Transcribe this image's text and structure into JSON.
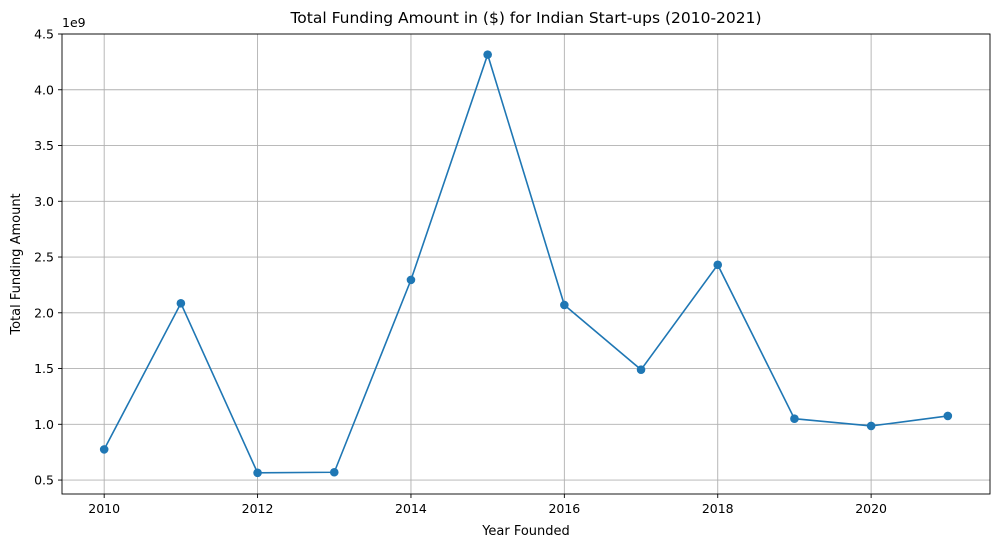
{
  "chart_data": {
    "type": "line",
    "title": "Total Funding Amount in ($) for Indian Start-ups (2010-2021)",
    "xlabel": "Year Founded",
    "ylabel": "Total Funding Amount",
    "y_offset_label": "1e9",
    "x": [
      2010,
      2011,
      2012,
      2013,
      2014,
      2015,
      2016,
      2017,
      2018,
      2019,
      2020,
      2021
    ],
    "series": [
      {
        "values": [
          775000000,
          2085000000,
          565000000,
          570000000,
          2295000000,
          4315000000,
          2070000000,
          1490000000,
          2430000000,
          1050000000,
          985000000,
          1075000000
        ],
        "color": "#1f77b4",
        "marker": "circle"
      }
    ],
    "xlim": [
      2009.45,
      2021.55
    ],
    "ylim": [
      0.375,
      4.5
    ],
    "x_ticks": [
      2010,
      2012,
      2014,
      2016,
      2018,
      2020
    ],
    "y_ticks": [
      0.5,
      1.0,
      1.5,
      2.0,
      2.5,
      3.0,
      3.5,
      4.0,
      4.5
    ],
    "y_tick_labels": [
      "0.5",
      "1.0",
      "1.5",
      "2.0",
      "2.5",
      "3.0",
      "3.5",
      "4.0",
      "4.5"
    ],
    "grid": true
  }
}
